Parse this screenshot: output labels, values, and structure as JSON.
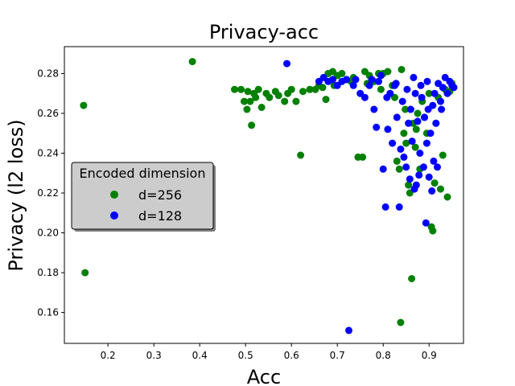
{
  "chart_data": {
    "type": "scatter",
    "title": "Privacy-acc",
    "xlabel": "Acc",
    "ylabel": "Privacy (l2 loss)",
    "xlim": [
      0.105,
      0.975
    ],
    "ylim": [
      0.1445,
      0.2935
    ],
    "xticks": [
      "0.2",
      "0.3",
      "0.4",
      "0.5",
      "0.6",
      "0.7",
      "0.8",
      "0.9"
    ],
    "yticks": [
      "0.16",
      "0.18",
      "0.20",
      "0.22",
      "0.24",
      "0.26",
      "0.28"
    ],
    "grid": false,
    "legend": {
      "title": "Encoded dimension",
      "placement": "center-left"
    },
    "series": [
      {
        "name": "d=256",
        "color": "#008000",
        "points": [
          [
            0.147,
            0.264
          ],
          [
            0.15,
            0.18
          ],
          [
            0.384,
            0.286
          ],
          [
            0.476,
            0.272
          ],
          [
            0.49,
            0.272
          ],
          [
            0.497,
            0.266
          ],
          [
            0.503,
            0.262
          ],
          [
            0.505,
            0.271
          ],
          [
            0.51,
            0.266
          ],
          [
            0.513,
            0.254
          ],
          [
            0.518,
            0.27
          ],
          [
            0.522,
            0.268
          ],
          [
            0.528,
            0.272
          ],
          [
            0.535,
            0.263
          ],
          [
            0.545,
            0.27
          ],
          [
            0.552,
            0.268
          ],
          [
            0.565,
            0.271
          ],
          [
            0.572,
            0.269
          ],
          [
            0.585,
            0.266
          ],
          [
            0.592,
            0.27
          ],
          [
            0.6,
            0.272
          ],
          [
            0.61,
            0.266
          ],
          [
            0.62,
            0.239
          ],
          [
            0.625,
            0.271
          ],
          [
            0.64,
            0.272
          ],
          [
            0.652,
            0.272
          ],
          [
            0.66,
            0.274
          ],
          [
            0.668,
            0.273
          ],
          [
            0.675,
            0.267
          ],
          [
            0.68,
            0.28
          ],
          [
            0.69,
            0.281
          ],
          [
            0.7,
            0.279
          ],
          [
            0.71,
            0.28
          ],
          [
            0.72,
            0.277
          ],
          [
            0.73,
            0.276
          ],
          [
            0.745,
            0.238
          ],
          [
            0.755,
            0.238
          ],
          [
            0.76,
            0.281
          ],
          [
            0.77,
            0.279
          ],
          [
            0.78,
            0.276
          ],
          [
            0.79,
            0.28
          ],
          [
            0.8,
            0.28
          ],
          [
            0.81,
            0.281
          ],
          [
            0.815,
            0.27
          ],
          [
            0.82,
            0.274
          ],
          [
            0.83,
            0.236
          ],
          [
            0.835,
            0.232
          ],
          [
            0.838,
            0.155
          ],
          [
            0.84,
            0.282
          ],
          [
            0.845,
            0.25
          ],
          [
            0.85,
            0.245
          ],
          [
            0.855,
            0.224
          ],
          [
            0.858,
            0.22
          ],
          [
            0.862,
            0.177
          ],
          [
            0.865,
            0.255
          ],
          [
            0.87,
            0.243
          ],
          [
            0.875,
            0.26
          ],
          [
            0.88,
            0.232
          ],
          [
            0.885,
            0.266
          ],
          [
            0.89,
            0.258
          ],
          [
            0.895,
            0.25
          ],
          [
            0.9,
            0.27
          ],
          [
            0.905,
            0.203
          ],
          [
            0.908,
            0.201
          ],
          [
            0.912,
            0.225
          ],
          [
            0.915,
            0.255
          ],
          [
            0.92,
            0.268
          ],
          [
            0.925,
            0.222
          ],
          [
            0.93,
            0.239
          ],
          [
            0.935,
            0.272
          ],
          [
            0.94,
            0.218
          ],
          [
            0.945,
            0.271
          ],
          [
            0.95,
            0.275
          ],
          [
            0.693,
            0.274
          ],
          [
            0.735,
            0.278
          ],
          [
            0.765,
            0.275
          ],
          [
            0.795,
            0.272
          ],
          [
            0.825,
            0.268
          ],
          [
            0.848,
            0.262
          ],
          [
            0.872,
            0.252
          ]
        ]
      },
      {
        "name": "d=128",
        "color": "#0000ff",
        "points": [
          [
            0.59,
            0.285
          ],
          [
            0.66,
            0.276
          ],
          [
            0.67,
            0.278
          ],
          [
            0.68,
            0.276
          ],
          [
            0.69,
            0.277
          ],
          [
            0.7,
            0.274
          ],
          [
            0.71,
            0.276
          ],
          [
            0.72,
            0.277
          ],
          [
            0.725,
            0.151
          ],
          [
            0.735,
            0.274
          ],
          [
            0.74,
            0.277
          ],
          [
            0.75,
            0.27
          ],
          [
            0.76,
            0.268
          ],
          [
            0.77,
            0.274
          ],
          [
            0.78,
            0.262
          ],
          [
            0.785,
            0.253
          ],
          [
            0.79,
            0.276
          ],
          [
            0.8,
            0.232
          ],
          [
            0.805,
            0.213
          ],
          [
            0.81,
            0.252
          ],
          [
            0.815,
            0.27
          ],
          [
            0.82,
            0.245
          ],
          [
            0.825,
            0.274
          ],
          [
            0.83,
            0.258
          ],
          [
            0.835,
            0.213
          ],
          [
            0.838,
            0.242
          ],
          [
            0.842,
            0.266
          ],
          [
            0.845,
            0.238
          ],
          [
            0.85,
            0.233
          ],
          [
            0.855,
            0.255
          ],
          [
            0.858,
            0.227
          ],
          [
            0.86,
            0.262
          ],
          [
            0.863,
            0.246
          ],
          [
            0.868,
            0.222
          ],
          [
            0.87,
            0.27
          ],
          [
            0.872,
            0.224
          ],
          [
            0.875,
            0.256
          ],
          [
            0.878,
            0.229
          ],
          [
            0.88,
            0.24
          ],
          [
            0.884,
            0.268
          ],
          [
            0.888,
            0.233
          ],
          [
            0.89,
            0.258
          ],
          [
            0.893,
            0.205
          ],
          [
            0.895,
            0.245
          ],
          [
            0.898,
            0.262
          ],
          [
            0.9,
            0.228
          ],
          [
            0.903,
            0.25
          ],
          [
            0.906,
            0.221
          ],
          [
            0.91,
            0.236
          ],
          [
            0.912,
            0.27
          ],
          [
            0.915,
            0.255
          ],
          [
            0.918,
            0.233
          ],
          [
            0.92,
            0.275
          ],
          [
            0.925,
            0.266
          ],
          [
            0.93,
            0.273
          ],
          [
            0.935,
            0.278
          ],
          [
            0.94,
            0.27
          ],
          [
            0.945,
            0.276
          ],
          [
            0.95,
            0.274
          ],
          [
            0.954,
            0.273
          ],
          [
            0.775,
            0.277
          ],
          [
            0.795,
            0.279
          ],
          [
            0.808,
            0.268
          ],
          [
            0.828,
            0.275
          ],
          [
            0.852,
            0.272
          ],
          [
            0.866,
            0.278
          ],
          [
            0.882,
            0.274
          ],
          [
            0.896,
            0.276
          ],
          [
            0.908,
            0.264
          ],
          [
            0.927,
            0.262
          ]
        ]
      }
    ]
  }
}
